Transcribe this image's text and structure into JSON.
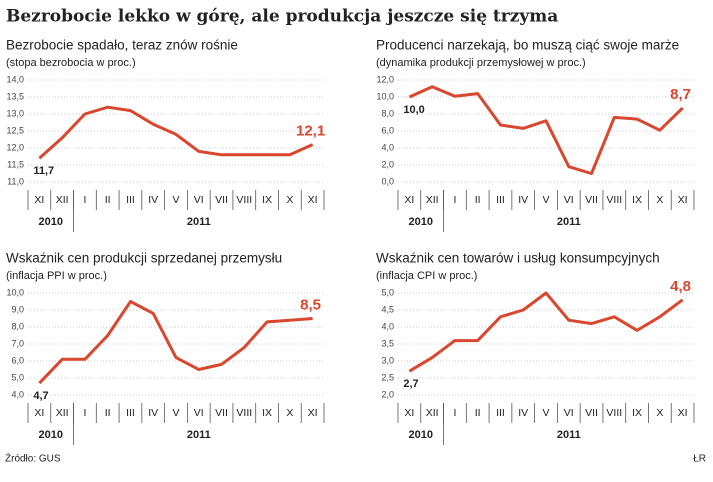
{
  "title": "Bezrobocie lekko w górę, ale produkcja jeszcze się trzyma",
  "source": "Źródło: GUS",
  "credit": "ŁR",
  "chart_data": [
    {
      "type": "line",
      "title": "Bezrobocie spadało, teraz znów rośnie",
      "subtitle": "(stopa bezrobocia w proc.)",
      "categories": [
        "XI",
        "XII",
        "I",
        "II",
        "III",
        "IV",
        "V",
        "VI",
        "VII",
        "VIII",
        "IX",
        "X",
        "XI"
      ],
      "x_groups": [
        {
          "label": "2010",
          "span": 2
        },
        {
          "label": "2011",
          "span": 11
        }
      ],
      "series": [
        {
          "color": "#d9472f",
          "values": [
            11.7,
            12.3,
            13.0,
            13.2,
            13.1,
            12.7,
            12.4,
            11.9,
            11.8,
            11.8,
            11.8,
            11.8,
            12.1
          ],
          "value_labels": [
            "11,7",
            null,
            null,
            null,
            null,
            null,
            null,
            null,
            null,
            null,
            null,
            null,
            "12,1"
          ]
        }
      ],
      "ylim": [
        11,
        14
      ],
      "yticks": [
        {
          "value": 11,
          "label": "11,0"
        },
        {
          "value": 11.5,
          "label": "11,5"
        },
        {
          "value": 12,
          "label": "12,0"
        },
        {
          "value": 12.5,
          "label": "12,5"
        },
        {
          "value": 13,
          "label": "13,0"
        },
        {
          "value": 13.5,
          "label": "13,5"
        },
        {
          "value": 14,
          "label": "14,0"
        }
      ],
      "grid": true
    },
    {
      "type": "line",
      "title": "Producenci narzekają, bo muszą ciąć swoje marże",
      "subtitle": "(dynamika produkcji przemysłowej w proc.)",
      "categories": [
        "XI",
        "XII",
        "I",
        "II",
        "III",
        "IV",
        "V",
        "VI",
        "VII",
        "VIII",
        "IX",
        "X",
        "XI"
      ],
      "x_groups": [
        {
          "label": "2010",
          "span": 2
        },
        {
          "label": "2011",
          "span": 11
        }
      ],
      "series": [
        {
          "color": "#d9472f",
          "values": [
            10.0,
            11.2,
            10.1,
            10.4,
            6.7,
            6.3,
            7.2,
            1.8,
            1.0,
            7.6,
            7.4,
            6.1,
            8.7
          ],
          "value_labels": [
            "10,0",
            null,
            null,
            null,
            null,
            null,
            null,
            null,
            null,
            null,
            null,
            null,
            "8,7"
          ]
        }
      ],
      "ylim": [
        0,
        12
      ],
      "yticks": [
        {
          "value": 0,
          "label": "0,0"
        },
        {
          "value": 2,
          "label": "2,0"
        },
        {
          "value": 4,
          "label": "4,0"
        },
        {
          "value": 6,
          "label": "6,0"
        },
        {
          "value": 8,
          "label": "8,0"
        },
        {
          "value": 10,
          "label": "10,0"
        },
        {
          "value": 12,
          "label": "12,0"
        }
      ],
      "grid": true
    },
    {
      "type": "line",
      "title": "Wskaźnik cen produkcji sprzedanej przemysłu",
      "subtitle": "(inflacja PPI w proc.)",
      "categories": [
        "XI",
        "XII",
        "I",
        "II",
        "III",
        "IV",
        "V",
        "VI",
        "VII",
        "VIII",
        "IX",
        "X",
        "XI"
      ],
      "x_groups": [
        {
          "label": "2010",
          "span": 2
        },
        {
          "label": "2011",
          "span": 11
        }
      ],
      "series": [
        {
          "color": "#d9472f",
          "values": [
            4.7,
            6.1,
            6.1,
            7.5,
            9.5,
            8.8,
            6.2,
            5.5,
            5.8,
            6.8,
            8.3,
            8.4,
            8.5
          ],
          "value_labels": [
            "4,7",
            null,
            null,
            null,
            null,
            null,
            null,
            null,
            null,
            null,
            null,
            null,
            "8,5"
          ]
        }
      ],
      "ylim": [
        4,
        10
      ],
      "yticks": [
        {
          "value": 4,
          "label": "4,0"
        },
        {
          "value": 5,
          "label": "5,0"
        },
        {
          "value": 6,
          "label": "6,0"
        },
        {
          "value": 7,
          "label": "7,0"
        },
        {
          "value": 8,
          "label": "8,0"
        },
        {
          "value": 9,
          "label": "9,0"
        },
        {
          "value": 10,
          "label": "10,0"
        }
      ],
      "grid": true
    },
    {
      "type": "line",
      "title": "Wskaźnik cen towarów i usług konsumpcyjnych",
      "subtitle": "(inflacja CPI w proc.)",
      "categories": [
        "XI",
        "XII",
        "I",
        "II",
        "III",
        "IV",
        "V",
        "VI",
        "VII",
        "VIII",
        "IX",
        "X",
        "XI"
      ],
      "x_groups": [
        {
          "label": "2010",
          "span": 2
        },
        {
          "label": "2011",
          "span": 11
        }
      ],
      "series": [
        {
          "color": "#d9472f",
          "values": [
            2.7,
            3.1,
            3.6,
            3.6,
            4.3,
            4.5,
            5.0,
            4.2,
            4.1,
            4.3,
            3.9,
            4.3,
            4.8
          ],
          "value_labels": [
            "2,7",
            null,
            null,
            null,
            null,
            null,
            null,
            null,
            null,
            null,
            null,
            null,
            "4,8"
          ]
        }
      ],
      "ylim": [
        2,
        5
      ],
      "yticks": [
        {
          "value": 2,
          "label": "2,0"
        },
        {
          "value": 2.5,
          "label": "2,5"
        },
        {
          "value": 3,
          "label": "3,0"
        },
        {
          "value": 3.5,
          "label": "3,5"
        },
        {
          "value": 4,
          "label": "4,0"
        },
        {
          "value": 4.5,
          "label": "4,5"
        },
        {
          "value": 5,
          "label": "5,0"
        }
      ],
      "grid": true
    }
  ]
}
